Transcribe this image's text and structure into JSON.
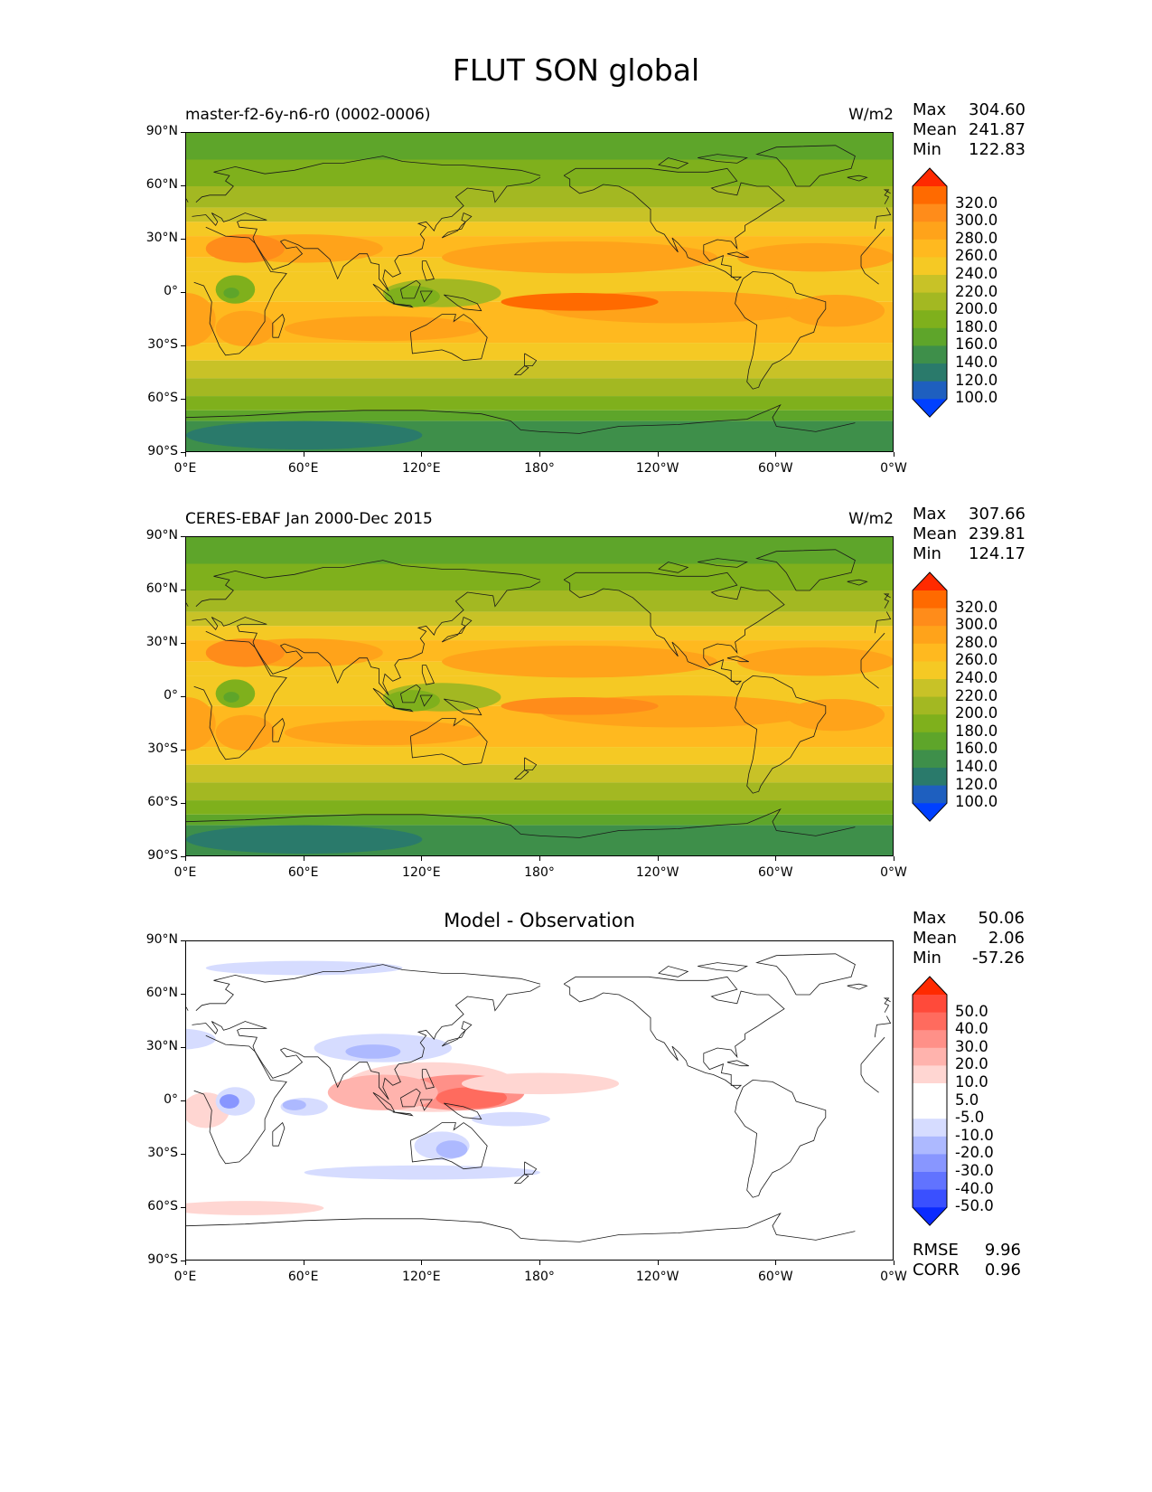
{
  "suptitle": "FLUT SON global",
  "panels": [
    {
      "title_left": "master-f2-6y-n6-r0 (0002-0006)",
      "title_right": "W/m2",
      "title_center": "",
      "stats": [
        {
          "label": "Max",
          "value": "304.60"
        },
        {
          "label": "Mean",
          "value": "241.87"
        },
        {
          "label": "Min",
          "value": "122.83"
        }
      ],
      "colorbar": {
        "labels": [
          "320.0",
          "300.0",
          "280.0",
          "260.0",
          "240.0",
          "220.0",
          "200.0",
          "180.0",
          "160.0",
          "140.0",
          "120.0",
          "100.0"
        ],
        "colors": [
          "#ff2a00",
          "#ff6a00",
          "#ff8c1a",
          "#ffa31a",
          "#ffb91f",
          "#f5c924",
          "#c8c227",
          "#a3b822",
          "#7fb01c",
          "#5ea52a",
          "#3e8f4a",
          "#2a7a6b",
          "#1e5fbf",
          "#0040ff"
        ]
      },
      "map_style": "model"
    },
    {
      "title_left": "CERES-EBAF Jan 2000-Dec 2015",
      "title_right": "W/m2",
      "title_center": "",
      "stats": [
        {
          "label": "Max",
          "value": "307.66"
        },
        {
          "label": "Mean",
          "value": "239.81"
        },
        {
          "label": "Min",
          "value": "124.17"
        }
      ],
      "colorbar": {
        "labels": [
          "320.0",
          "300.0",
          "280.0",
          "260.0",
          "240.0",
          "220.0",
          "200.0",
          "180.0",
          "160.0",
          "140.0",
          "120.0",
          "100.0"
        ],
        "colors": [
          "#ff2a00",
          "#ff6a00",
          "#ff8c1a",
          "#ffa31a",
          "#ffb91f",
          "#f5c924",
          "#c8c227",
          "#a3b822",
          "#7fb01c",
          "#5ea52a",
          "#3e8f4a",
          "#2a7a6b",
          "#1e5fbf",
          "#0040ff"
        ]
      },
      "map_style": "obs"
    },
    {
      "title_left": "",
      "title_right": "",
      "title_center": "Model - Observation",
      "stats": [
        {
          "label": "Max",
          "value": "50.06"
        },
        {
          "label": "Mean",
          "value": "2.06"
        },
        {
          "label": "Min",
          "value": "-57.26"
        }
      ],
      "colorbar": {
        "labels": [
          "50.0",
          "40.0",
          "30.0",
          "20.0",
          "10.0",
          "5.0",
          "-5.0",
          "-10.0",
          "-20.0",
          "-30.0",
          "-40.0",
          "-50.0"
        ],
        "colors": [
          "#ff2a00",
          "#ff4a3a",
          "#ff6b5e",
          "#ff9088",
          "#ffb3ad",
          "#ffd6d2",
          "#ffffff",
          "#ffffff",
          "#d6dcff",
          "#adb9ff",
          "#8896ff",
          "#6173ff",
          "#3a50ff",
          "#0a2aff"
        ]
      },
      "map_style": "diff",
      "metrics": [
        {
          "label": "RMSE",
          "value": "9.96"
        },
        {
          "label": "CORR",
          "value": "0.96"
        }
      ]
    }
  ],
  "axes": {
    "yticks": [
      "90°N",
      "60°N",
      "30°N",
      "0°",
      "30°S",
      "60°S",
      "90°S"
    ],
    "xticks": [
      "0°E",
      "60°E",
      "120°E",
      "180°",
      "120°W",
      "60°W",
      "0°W"
    ]
  },
  "chart_data": [
    {
      "type": "heatmap",
      "title": "master-f2-6y-n6-r0 (0002-0006)",
      "units": "W/m2",
      "levels": [
        100,
        120,
        140,
        160,
        180,
        200,
        220,
        240,
        260,
        280,
        300,
        320
      ],
      "xlim": [
        0,
        360
      ],
      "ylim": [
        -90,
        90
      ],
      "max": 304.6,
      "mean": 241.87,
      "min": 122.83
    },
    {
      "type": "heatmap",
      "title": "CERES-EBAF Jan 2000-Dec 2015",
      "units": "W/m2",
      "levels": [
        100,
        120,
        140,
        160,
        180,
        200,
        220,
        240,
        260,
        280,
        300,
        320
      ],
      "xlim": [
        0,
        360
      ],
      "ylim": [
        -90,
        90
      ],
      "max": 307.66,
      "mean": 239.81,
      "min": 124.17
    },
    {
      "type": "heatmap",
      "title": "Model - Observation",
      "levels": [
        -50,
        -40,
        -30,
        -20,
        -10,
        -5,
        5,
        10,
        20,
        30,
        40,
        50
      ],
      "xlim": [
        0,
        360
      ],
      "ylim": [
        -90,
        90
      ],
      "max": 50.06,
      "mean": 2.06,
      "min": -57.26,
      "rmse": 9.96,
      "corr": 0.96
    }
  ]
}
